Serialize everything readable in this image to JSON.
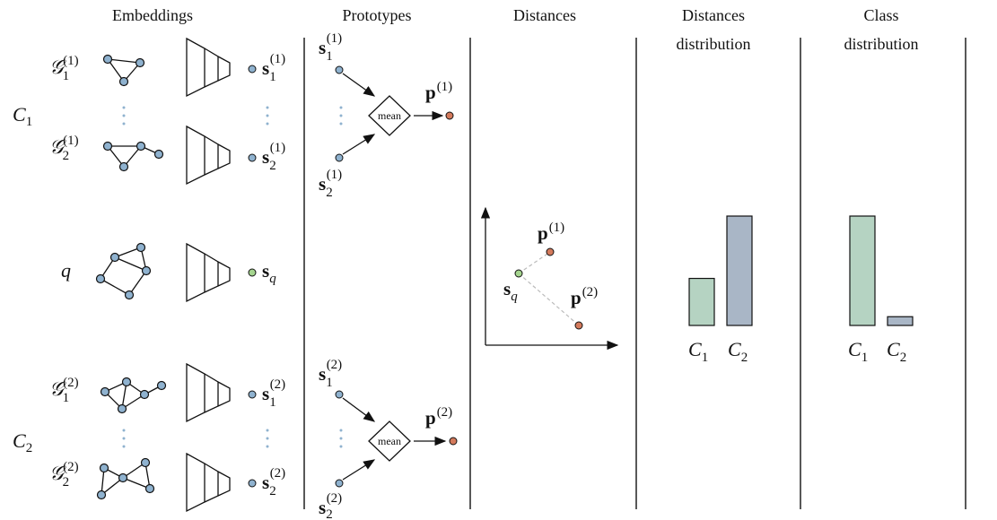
{
  "headers": {
    "embeddings": "Embeddings",
    "prototypes": "Prototypes",
    "distances": "Distances",
    "distances_distribution_line1": "Distances",
    "distances_distribution_line2": "distribution",
    "class_distribution_line1": "Class",
    "class_distribution_line2": "distribution"
  },
  "classes": [
    {
      "name": "C",
      "index": "1",
      "graphs": [
        {
          "sym": "𝒢",
          "sub": "1",
          "sup": "(1)"
        },
        {
          "sym": "𝒢",
          "sub": "2",
          "sup": "(1)"
        }
      ],
      "embeddings": [
        {
          "sym": "s",
          "sub": "1",
          "sup": "(1)"
        },
        {
          "sym": "s",
          "sub": "2",
          "sup": "(1)"
        }
      ],
      "prototype": {
        "sym": "p",
        "sup": "(1)"
      }
    },
    {
      "name": "C",
      "index": "2",
      "graphs": [
        {
          "sym": "𝒢",
          "sub": "1",
          "sup": "(2)"
        },
        {
          "sym": "𝒢",
          "sub": "2",
          "sup": "(2)"
        }
      ],
      "embeddings": [
        {
          "sym": "s",
          "sub": "1",
          "sup": "(2)"
        },
        {
          "sym": "s",
          "sub": "2",
          "sup": "(2)"
        }
      ],
      "prototype": {
        "sym": "p",
        "sup": "(2)"
      }
    }
  ],
  "query": {
    "label": "q",
    "embedding": {
      "sym": "s",
      "sub": "q"
    }
  },
  "mean_label": "mean",
  "dist_bars": {
    "labels": [
      {
        "sym": "C",
        "sub": "1"
      },
      {
        "sym": "C",
        "sub": "2"
      }
    ],
    "values": [
      0.43,
      1.0
    ]
  },
  "class_bars": {
    "labels": [
      {
        "sym": "C",
        "sub": "1"
      },
      {
        "sym": "C",
        "sub": "2"
      }
    ],
    "values": [
      1.0,
      0.08
    ]
  },
  "colors": {
    "embedding": "#8fb2cf",
    "prototype": "#d47a5c",
    "query": "#a5d58f",
    "bar_c1": "#b5d3c2",
    "bar_c2": "#a9b6c6"
  }
}
